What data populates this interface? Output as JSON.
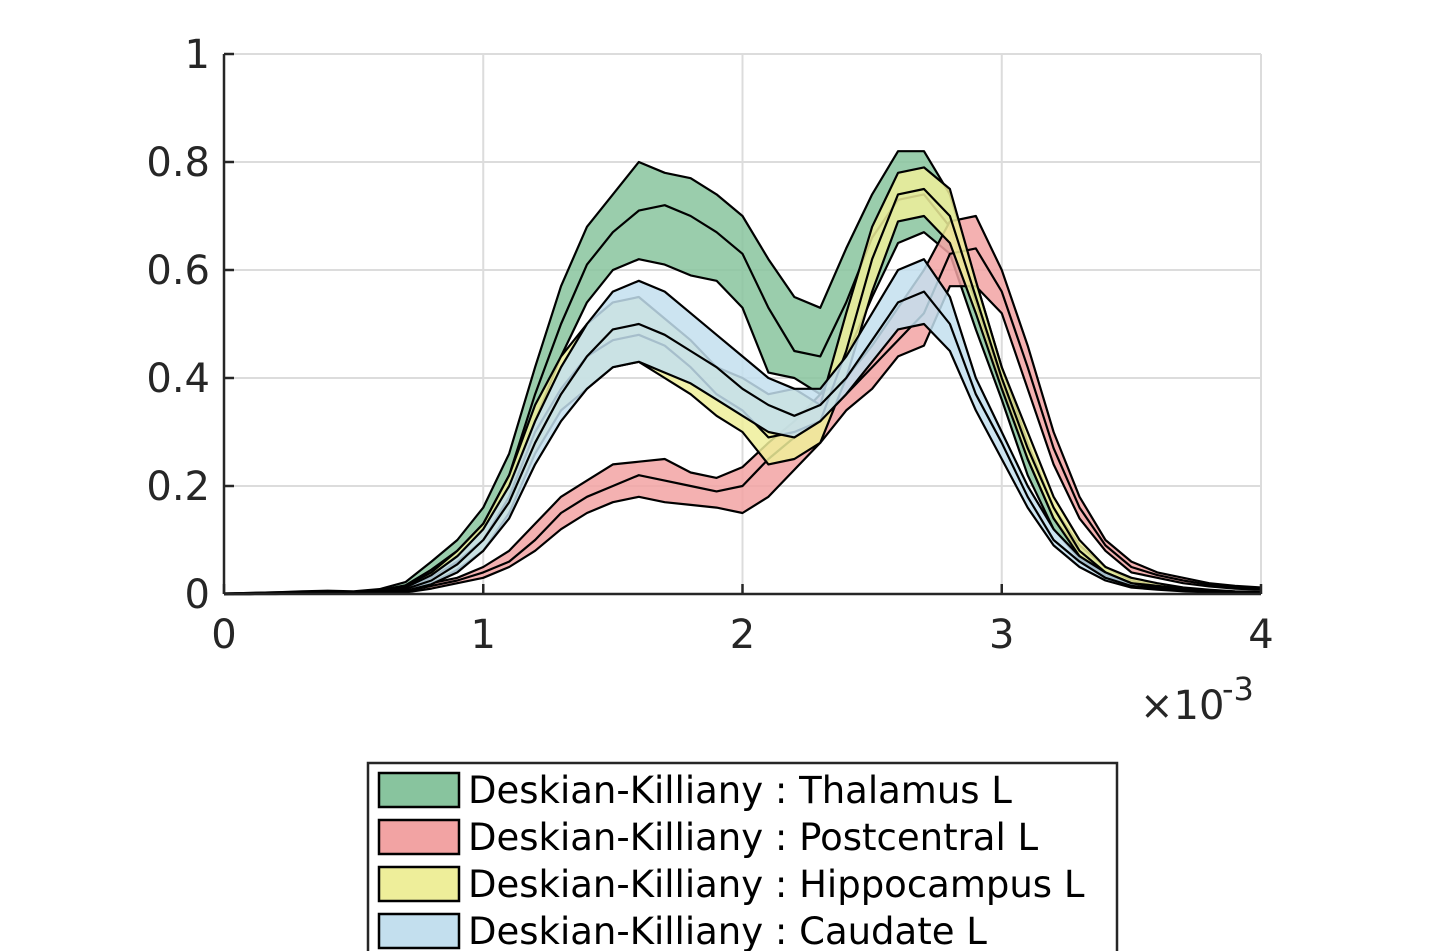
{
  "chart_data": {
    "type": "area",
    "title": "",
    "xlabel": "",
    "ylabel": "",
    "x_exponent_label": {
      "base": "×10",
      "exponent": "-3"
    },
    "xlim": [
      0,
      4
    ],
    "ylim": [
      0,
      1
    ],
    "grid": true,
    "x_ticks": [
      0,
      1,
      2,
      3,
      4
    ],
    "x_tick_labels": [
      "0",
      "1",
      "2",
      "3",
      "4"
    ],
    "y_ticks": [
      0,
      0.2,
      0.4,
      0.6,
      0.8,
      1
    ],
    "y_tick_labels": [
      "0",
      "0.2",
      "0.4",
      "0.6",
      "0.8",
      "1"
    ],
    "legend_position": "below",
    "x": [
      0,
      0.1,
      0.2,
      0.3,
      0.4,
      0.5,
      0.6,
      0.7,
      0.8,
      0.9,
      1.0,
      1.1,
      1.2,
      1.3,
      1.4,
      1.5,
      1.6,
      1.7,
      1.8,
      1.9,
      2.0,
      2.1,
      2.2,
      2.3,
      2.4,
      2.5,
      2.6,
      2.7,
      2.8,
      2.9,
      3.0,
      3.1,
      3.2,
      3.3,
      3.4,
      3.5,
      3.6,
      3.7,
      3.8,
      3.9,
      4.0
    ],
    "series": [
      {
        "name": "Deskian-Killiany : Thalamus L",
        "color": "#88c49e",
        "upper": [
          0.001,
          0.002,
          0.003,
          0.005,
          0.006,
          0.005,
          0.009,
          0.022,
          0.06,
          0.1,
          0.16,
          0.26,
          0.42,
          0.57,
          0.68,
          0.74,
          0.8,
          0.78,
          0.77,
          0.74,
          0.7,
          0.62,
          0.55,
          0.53,
          0.64,
          0.74,
          0.82,
          0.82,
          0.74,
          0.58,
          0.42,
          0.28,
          0.16,
          0.09,
          0.05,
          0.025,
          0.015,
          0.01,
          0.006,
          0.004,
          0.003
        ],
        "mean": [
          0.001,
          0.002,
          0.003,
          0.004,
          0.005,
          0.004,
          0.007,
          0.016,
          0.045,
          0.08,
          0.13,
          0.22,
          0.37,
          0.5,
          0.61,
          0.67,
          0.71,
          0.72,
          0.7,
          0.67,
          0.63,
          0.53,
          0.45,
          0.44,
          0.54,
          0.66,
          0.73,
          0.74,
          0.68,
          0.54,
          0.39,
          0.25,
          0.14,
          0.08,
          0.04,
          0.02,
          0.012,
          0.008,
          0.005,
          0.003,
          0.002
        ],
        "lower": [
          0.0,
          0.001,
          0.002,
          0.003,
          0.004,
          0.003,
          0.005,
          0.011,
          0.03,
          0.06,
          0.1,
          0.18,
          0.32,
          0.44,
          0.54,
          0.6,
          0.62,
          0.61,
          0.59,
          0.58,
          0.53,
          0.41,
          0.4,
          0.37,
          0.44,
          0.55,
          0.65,
          0.67,
          0.63,
          0.49,
          0.36,
          0.22,
          0.12,
          0.065,
          0.03,
          0.015,
          0.009,
          0.006,
          0.004,
          0.002,
          0.001
        ]
      },
      {
        "name": "Deskian-Killiany : Postcentral L",
        "color": "#f2a3a3",
        "upper": [
          0.0,
          0.001,
          0.001,
          0.002,
          0.002,
          0.002,
          0.003,
          0.007,
          0.02,
          0.03,
          0.05,
          0.08,
          0.13,
          0.18,
          0.21,
          0.24,
          0.245,
          0.25,
          0.225,
          0.215,
          0.235,
          0.28,
          0.32,
          0.37,
          0.4,
          0.46,
          0.53,
          0.6,
          0.69,
          0.7,
          0.6,
          0.46,
          0.3,
          0.18,
          0.1,
          0.06,
          0.04,
          0.03,
          0.02,
          0.015,
          0.012
        ],
        "mean": [
          0.0,
          0.0,
          0.001,
          0.001,
          0.002,
          0.002,
          0.002,
          0.005,
          0.015,
          0.025,
          0.04,
          0.06,
          0.1,
          0.15,
          0.18,
          0.2,
          0.22,
          0.21,
          0.2,
          0.19,
          0.2,
          0.25,
          0.29,
          0.32,
          0.37,
          0.42,
          0.47,
          0.52,
          0.63,
          0.64,
          0.56,
          0.42,
          0.27,
          0.16,
          0.09,
          0.05,
          0.035,
          0.025,
          0.017,
          0.012,
          0.01
        ],
        "lower": [
          0.0,
          0.0,
          0.0,
          0.001,
          0.001,
          0.001,
          0.002,
          0.003,
          0.01,
          0.02,
          0.03,
          0.05,
          0.08,
          0.12,
          0.15,
          0.17,
          0.18,
          0.17,
          0.165,
          0.16,
          0.15,
          0.18,
          0.23,
          0.28,
          0.34,
          0.38,
          0.44,
          0.46,
          0.57,
          0.57,
          0.52,
          0.38,
          0.24,
          0.14,
          0.08,
          0.04,
          0.03,
          0.02,
          0.014,
          0.01,
          0.008
        ]
      },
      {
        "name": "Deskian-Killiany : Hippocampus L",
        "color": "#eeee9a",
        "upper": [
          0.0,
          0.001,
          0.002,
          0.003,
          0.004,
          0.004,
          0.006,
          0.015,
          0.04,
          0.08,
          0.13,
          0.22,
          0.35,
          0.44,
          0.5,
          0.54,
          0.55,
          0.51,
          0.47,
          0.42,
          0.4,
          0.37,
          0.38,
          0.35,
          0.52,
          0.68,
          0.78,
          0.79,
          0.75,
          0.58,
          0.42,
          0.3,
          0.18,
          0.1,
          0.05,
          0.03,
          0.02,
          0.012,
          0.008,
          0.005,
          0.004
        ],
        "mean": [
          0.0,
          0.001,
          0.001,
          0.002,
          0.003,
          0.003,
          0.004,
          0.011,
          0.03,
          0.06,
          0.1,
          0.18,
          0.3,
          0.38,
          0.44,
          0.47,
          0.48,
          0.46,
          0.42,
          0.37,
          0.34,
          0.29,
          0.3,
          0.32,
          0.45,
          0.62,
          0.74,
          0.75,
          0.7,
          0.55,
          0.4,
          0.27,
          0.16,
          0.08,
          0.04,
          0.02,
          0.015,
          0.01,
          0.006,
          0.004,
          0.003
        ],
        "lower": [
          0.0,
          0.0,
          0.001,
          0.001,
          0.002,
          0.002,
          0.003,
          0.008,
          0.02,
          0.045,
          0.08,
          0.15,
          0.26,
          0.34,
          0.38,
          0.42,
          0.43,
          0.4,
          0.37,
          0.33,
          0.3,
          0.24,
          0.25,
          0.28,
          0.4,
          0.56,
          0.69,
          0.7,
          0.65,
          0.52,
          0.38,
          0.25,
          0.14,
          0.07,
          0.035,
          0.018,
          0.012,
          0.008,
          0.005,
          0.003,
          0.002
        ]
      },
      {
        "name": "Deskian-Killiany : Caudate L",
        "color": "#c3dfee",
        "upper": [
          0.0,
          0.001,
          0.002,
          0.003,
          0.004,
          0.004,
          0.005,
          0.012,
          0.035,
          0.07,
          0.12,
          0.2,
          0.32,
          0.42,
          0.5,
          0.56,
          0.58,
          0.56,
          0.52,
          0.48,
          0.44,
          0.4,
          0.38,
          0.38,
          0.44,
          0.52,
          0.6,
          0.62,
          0.55,
          0.4,
          0.3,
          0.2,
          0.12,
          0.07,
          0.04,
          0.02,
          0.012,
          0.008,
          0.005,
          0.003,
          0.002
        ],
        "mean": [
          0.0,
          0.001,
          0.001,
          0.002,
          0.003,
          0.003,
          0.004,
          0.009,
          0.025,
          0.055,
          0.1,
          0.17,
          0.28,
          0.37,
          0.44,
          0.49,
          0.5,
          0.48,
          0.45,
          0.42,
          0.38,
          0.35,
          0.33,
          0.35,
          0.4,
          0.47,
          0.54,
          0.56,
          0.5,
          0.37,
          0.28,
          0.18,
          0.1,
          0.06,
          0.03,
          0.015,
          0.01,
          0.006,
          0.004,
          0.002,
          0.001
        ],
        "lower": [
          0.0,
          0.0,
          0.001,
          0.001,
          0.002,
          0.002,
          0.003,
          0.006,
          0.018,
          0.04,
          0.08,
          0.14,
          0.24,
          0.32,
          0.38,
          0.42,
          0.43,
          0.41,
          0.39,
          0.36,
          0.33,
          0.3,
          0.29,
          0.32,
          0.37,
          0.43,
          0.49,
          0.5,
          0.45,
          0.34,
          0.25,
          0.16,
          0.09,
          0.05,
          0.025,
          0.012,
          0.008,
          0.005,
          0.003,
          0.002,
          0.001
        ]
      }
    ]
  }
}
